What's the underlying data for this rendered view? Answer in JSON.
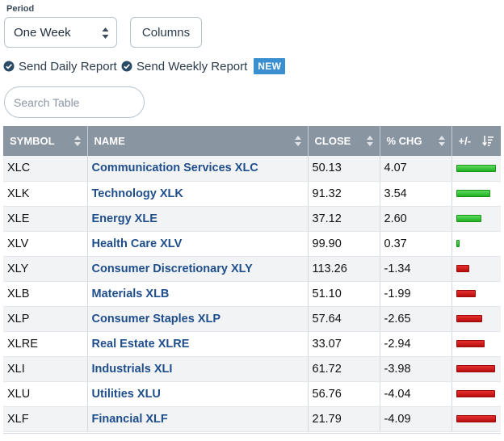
{
  "period": {
    "label": "Period",
    "value": "One Week"
  },
  "columns_button": "Columns",
  "reports": {
    "daily": "Send Daily Report",
    "weekly": "Send Weekly Report",
    "badge": "NEW"
  },
  "search": {
    "placeholder": "Search Table"
  },
  "table": {
    "headers": {
      "symbol": "SYMBOL",
      "name": "NAME",
      "close": "CLOSE",
      "chg": "% CHG",
      "bar": "+/-"
    },
    "rows": [
      {
        "symbol": "XLC",
        "name": "Communication Services XLC",
        "close": "50.13",
        "chg": "4.07",
        "change": 4.07
      },
      {
        "symbol": "XLK",
        "name": "Technology XLK",
        "close": "91.32",
        "chg": "3.54",
        "change": 3.54
      },
      {
        "symbol": "XLE",
        "name": "Energy XLE",
        "close": "37.12",
        "chg": "2.60",
        "change": 2.6
      },
      {
        "symbol": "XLV",
        "name": "Health Care XLV",
        "close": "99.90",
        "chg": "0.37",
        "change": 0.37
      },
      {
        "symbol": "XLY",
        "name": "Consumer Discretionary XLY",
        "close": "113.26",
        "chg": "-1.34",
        "change": -1.34
      },
      {
        "symbol": "XLB",
        "name": "Materials XLB",
        "close": "51.10",
        "chg": "-1.99",
        "change": -1.99
      },
      {
        "symbol": "XLP",
        "name": "Consumer Staples XLP",
        "close": "57.64",
        "chg": "-2.65",
        "change": -2.65
      },
      {
        "symbol": "XLRE",
        "name": "Real Estate XLRE",
        "close": "33.07",
        "chg": "-2.94",
        "change": -2.94
      },
      {
        "symbol": "XLI",
        "name": "Industrials XLI",
        "close": "61.72",
        "chg": "-3.98",
        "change": -3.98
      },
      {
        "symbol": "XLU",
        "name": "Utilities XLU",
        "close": "56.76",
        "chg": "-4.04",
        "change": -4.04
      },
      {
        "symbol": "XLF",
        "name": "Financial XLF",
        "close": "21.79",
        "chg": "-4.09",
        "change": -4.09
      }
    ]
  },
  "colors": {
    "header_bg": "#8a95a2",
    "link": "#1f4e8c",
    "positive": "#2ec22e",
    "negative": "#cc1515",
    "badge": "#3a8fd0"
  },
  "icons": {
    "check": "check-circle-icon",
    "sort": "sort-arrows-icon",
    "sort_desc": "sort-descending-icon",
    "select": "select-arrows-icon"
  }
}
